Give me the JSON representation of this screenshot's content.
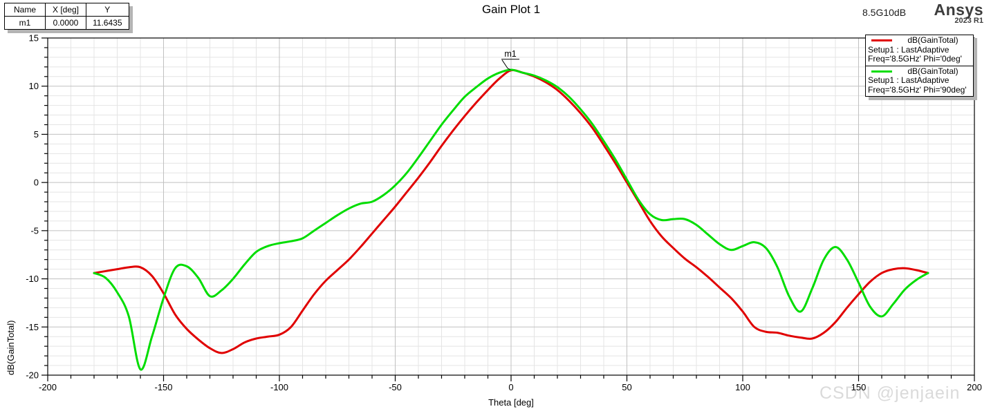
{
  "window": {
    "title": "Gain Plot 1",
    "project_note": "8.5G10dB",
    "brand": {
      "name": "Ansys",
      "version": "2023 R1"
    },
    "watermark": "CSDN @jenjaein"
  },
  "marker_table": {
    "headers": [
      "Name",
      "X [deg]",
      "Y"
    ],
    "rows": [
      [
        "m1",
        "0.0000",
        "11.6435"
      ]
    ]
  },
  "legend": {
    "entries": [
      {
        "label": "dB(GainTotal)",
        "line2": "Setup1 : LastAdaptive",
        "line3": "Freq='8.5GHz' Phi='0deg'"
      },
      {
        "label": "dB(GainTotal)",
        "line2": "Setup1 : LastAdaptive",
        "line3": "Freq='8.5GHz' Phi='90deg'"
      }
    ]
  },
  "chart_data": {
    "type": "line",
    "title": "Gain Plot 1",
    "xlabel": "Theta [deg]",
    "ylabel": "dB(GainTotal)",
    "xlim": [
      -200,
      200
    ],
    "ylim": [
      -20,
      15
    ],
    "x_major_step": 50,
    "x_minor_step": 10,
    "y_major_step": 5,
    "y_minor_step": 1,
    "grid": true,
    "legend_position": "top-right",
    "colors": {
      "grid_minor": "#e4e4e4",
      "grid_major": "#c0c0c0",
      "axis": "#000000"
    },
    "x": [
      -180,
      -175,
      -170,
      -165,
      -160,
      -155,
      -150,
      -145,
      -140,
      -135,
      -130,
      -125,
      -120,
      -115,
      -110,
      -105,
      -100,
      -95,
      -90,
      -85,
      -80,
      -75,
      -70,
      -65,
      -60,
      -55,
      -50,
      -45,
      -40,
      -35,
      -30,
      -25,
      -20,
      -15,
      -10,
      -5,
      0,
      5,
      10,
      15,
      20,
      25,
      30,
      35,
      40,
      45,
      50,
      55,
      60,
      65,
      70,
      75,
      80,
      85,
      90,
      95,
      100,
      105,
      110,
      115,
      120,
      125,
      130,
      135,
      140,
      145,
      150,
      155,
      160,
      165,
      170,
      175,
      180
    ],
    "series": [
      {
        "name": "dB(GainTotal) Phi='0deg'",
        "color": "#e00000",
        "values": [
          -9.4,
          -9.2,
          -9.0,
          -8.8,
          -8.8,
          -9.7,
          -11.5,
          -13.7,
          -15.2,
          -16.3,
          -17.2,
          -17.7,
          -17.3,
          -16.6,
          -16.2,
          -16.0,
          -15.8,
          -15.0,
          -13.3,
          -11.6,
          -10.2,
          -9.1,
          -8.0,
          -6.7,
          -5.3,
          -3.9,
          -2.5,
          -1.0,
          0.5,
          2.1,
          3.8,
          5.4,
          6.9,
          8.3,
          9.6,
          10.8,
          11.64,
          11.4,
          11.0,
          10.4,
          9.6,
          8.5,
          7.2,
          5.7,
          3.9,
          2.0,
          0.0,
          -2.0,
          -4.0,
          -5.6,
          -6.8,
          -7.9,
          -8.8,
          -9.8,
          -10.9,
          -12.0,
          -13.4,
          -15.0,
          -15.5,
          -15.6,
          -15.9,
          -16.1,
          -16.2,
          -15.6,
          -14.5,
          -13.0,
          -11.6,
          -10.3,
          -9.4,
          -9.0,
          -8.9,
          -9.1,
          -9.4
        ]
      },
      {
        "name": "dB(GainTotal) Phi='90deg'",
        "color": "#00dd00",
        "values": [
          -9.4,
          -9.9,
          -11.4,
          -13.9,
          -19.4,
          -16.0,
          -12.0,
          -8.9,
          -8.7,
          -9.9,
          -11.8,
          -11.2,
          -10.0,
          -8.5,
          -7.2,
          -6.6,
          -6.3,
          -6.1,
          -5.8,
          -5.0,
          -4.2,
          -3.4,
          -2.7,
          -2.2,
          -2.0,
          -1.3,
          -0.3,
          1.0,
          2.6,
          4.3,
          6.0,
          7.5,
          8.9,
          9.9,
          10.8,
          11.4,
          11.7,
          11.4,
          11.1,
          10.6,
          9.9,
          8.9,
          7.6,
          6.1,
          4.3,
          2.4,
          0.3,
          -1.8,
          -3.3,
          -3.9,
          -3.8,
          -3.8,
          -4.4,
          -5.4,
          -6.4,
          -7.0,
          -6.6,
          -6.2,
          -6.8,
          -8.8,
          -11.8,
          -13.4,
          -11.0,
          -8.0,
          -6.7,
          -8.0,
          -10.4,
          -12.9,
          -13.9,
          -12.6,
          -11.1,
          -10.1,
          -9.4
        ]
      }
    ],
    "marker": {
      "name": "m1",
      "x": 0,
      "y": 11.6435
    }
  }
}
